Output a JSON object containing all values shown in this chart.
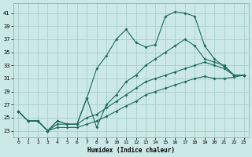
{
  "xlabel": "Humidex (Indice chaleur)",
  "bg_color": "#cce8e8",
  "grid_color": "#aacece",
  "line_color": "#1e6b60",
  "xlim": [
    -0.5,
    23.5
  ],
  "ylim": [
    22,
    42.5
  ],
  "xticks": [
    0,
    1,
    2,
    3,
    4,
    5,
    6,
    7,
    8,
    9,
    10,
    11,
    12,
    13,
    14,
    15,
    16,
    17,
    18,
    19,
    20,
    21,
    22,
    23
  ],
  "yticks": [
    23,
    25,
    27,
    29,
    31,
    33,
    35,
    37,
    39,
    41
  ],
  "s1": [
    26.0,
    24.5,
    24.5,
    23.0,
    24.5,
    24.0,
    24.0,
    28.0,
    32.5,
    34.5,
    37.0,
    38.5,
    36.5,
    35.8,
    36.2,
    40.5,
    41.2,
    41.0,
    40.5,
    36.0,
    34.0,
    32.8,
    31.5,
    31.5
  ],
  "s2": [
    26.0,
    24.5,
    24.5,
    23.0,
    24.5,
    24.0,
    24.0,
    28.0,
    23.5,
    27.0,
    28.5,
    30.5,
    31.5,
    33.0,
    34.0,
    35.0,
    36.0,
    37.0,
    36.0,
    34.0,
    33.5,
    33.0,
    31.5,
    31.5
  ],
  "s3": [
    26.0,
    24.5,
    24.5,
    23.0,
    24.0,
    24.0,
    24.0,
    25.0,
    25.5,
    26.5,
    27.5,
    28.5,
    29.5,
    30.5,
    31.0,
    31.5,
    32.0,
    32.5,
    33.0,
    33.5,
    33.0,
    32.5,
    31.5,
    31.5
  ],
  "s4": [
    26.0,
    24.5,
    24.5,
    23.0,
    23.5,
    23.5,
    23.5,
    24.0,
    24.5,
    25.2,
    26.0,
    26.8,
    27.5,
    28.5,
    29.0,
    29.5,
    30.0,
    30.5,
    31.0,
    31.3,
    31.0,
    31.0,
    31.2,
    31.5
  ]
}
